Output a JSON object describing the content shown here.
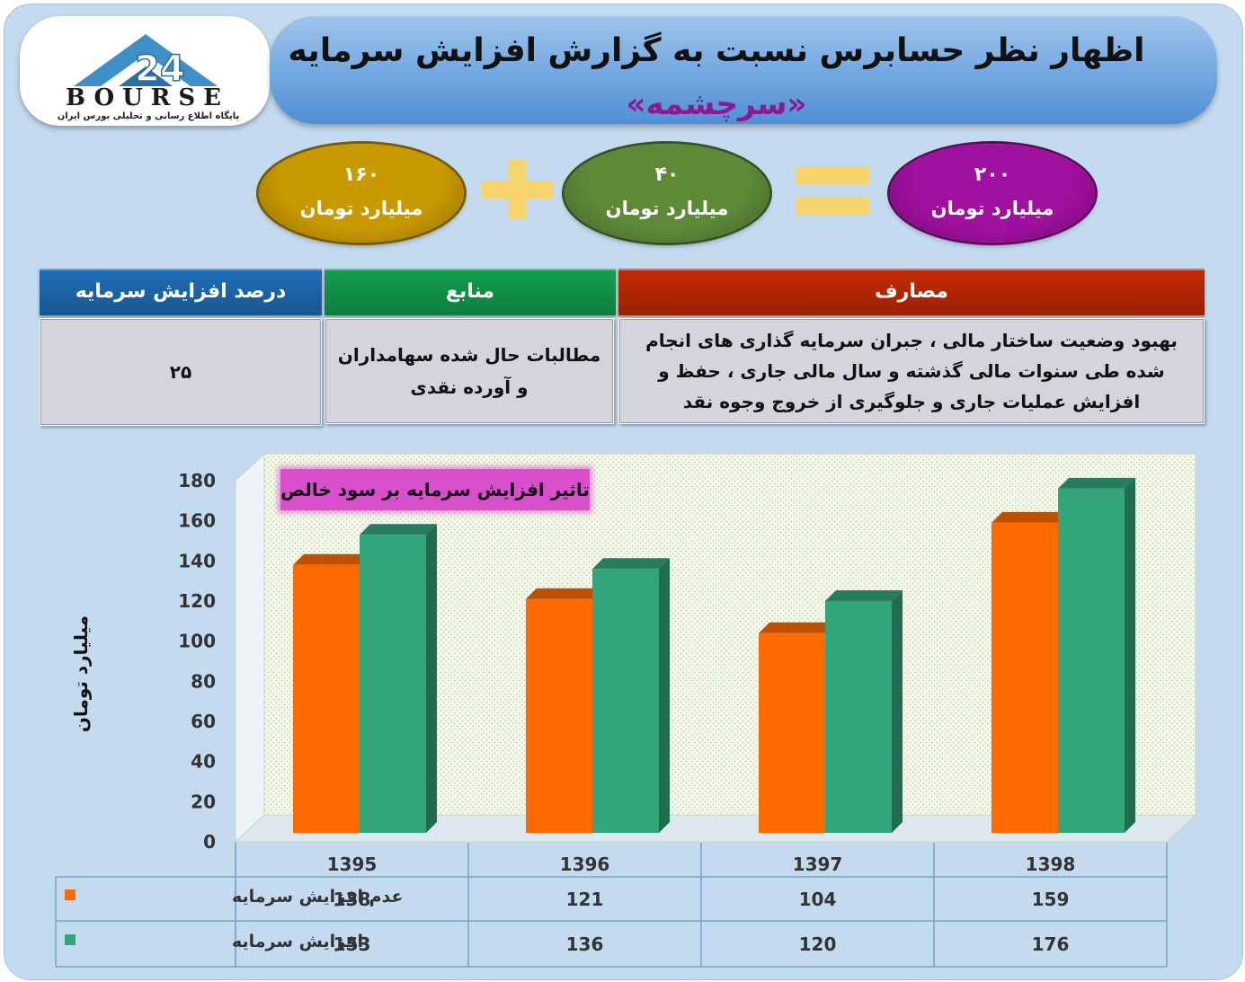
{
  "header": {
    "title_line1": "اظهار نظر حسابرس نسبت به گزارش افزایش سرمایه",
    "title_line2": "«سرچشمه»",
    "logo_text": "BOURSE",
    "logo_number": "24",
    "logo_subtitle": "پایگاه اطلاع رسانی و تحلیلی بورس ایران"
  },
  "equation": {
    "left": {
      "value": "۱۶۰",
      "unit": "میلیارد تومان",
      "color": "#c99a00"
    },
    "middle": {
      "value": "۴۰",
      "unit": "میلیارد تومان",
      "color": "#5e8a38"
    },
    "right": {
      "value": "۲۰۰",
      "unit": "میلیارد تومان",
      "color": "#a0109e"
    },
    "plus_color": "#f5d56c",
    "equals_color": "#f5d56c"
  },
  "info_table": {
    "headers": {
      "percent": "درصد افزایش سرمایه",
      "sources": "منابع",
      "uses": "مصارف"
    },
    "header_colors": {
      "percent": "#1f6fb8",
      "sources": "#12a050",
      "uses": "#c62a05"
    },
    "values": {
      "percent": "۲۵",
      "sources": "مطالبات حال شده سهامداران و آورده نقدی",
      "uses": "بهبود وضعیت ساختار مالی ، جبران سرمایه گذاری های انجام شده طی سنوات مالی گذشته و سال مالی جاری ، حفظ و افزایش عملیات جاری و جلوگیری از خروج وجوه نقد"
    }
  },
  "chart_data": {
    "type": "bar",
    "title": "تاثیر افزایش سرمایه بر سود خالص",
    "title_bg": "#d84fcb",
    "ylabel": "میلیارد تومان",
    "xlabel": "",
    "ylim": [
      0,
      180
    ],
    "yticks": [
      0,
      20,
      40,
      60,
      80,
      100,
      120,
      140,
      160,
      180
    ],
    "categories": [
      "1395",
      "1396",
      "1397",
      "1398"
    ],
    "series": [
      {
        "name": "عدم افزایش سرمایه",
        "values": [
          138,
          121,
          104,
          159
        ],
        "color": "#ff6a00"
      },
      {
        "name": "افزایش سرمایه",
        "values": [
          153,
          136,
          120,
          176
        ],
        "color": "#33a57a"
      }
    ],
    "grid": false,
    "legend": "data-table"
  }
}
